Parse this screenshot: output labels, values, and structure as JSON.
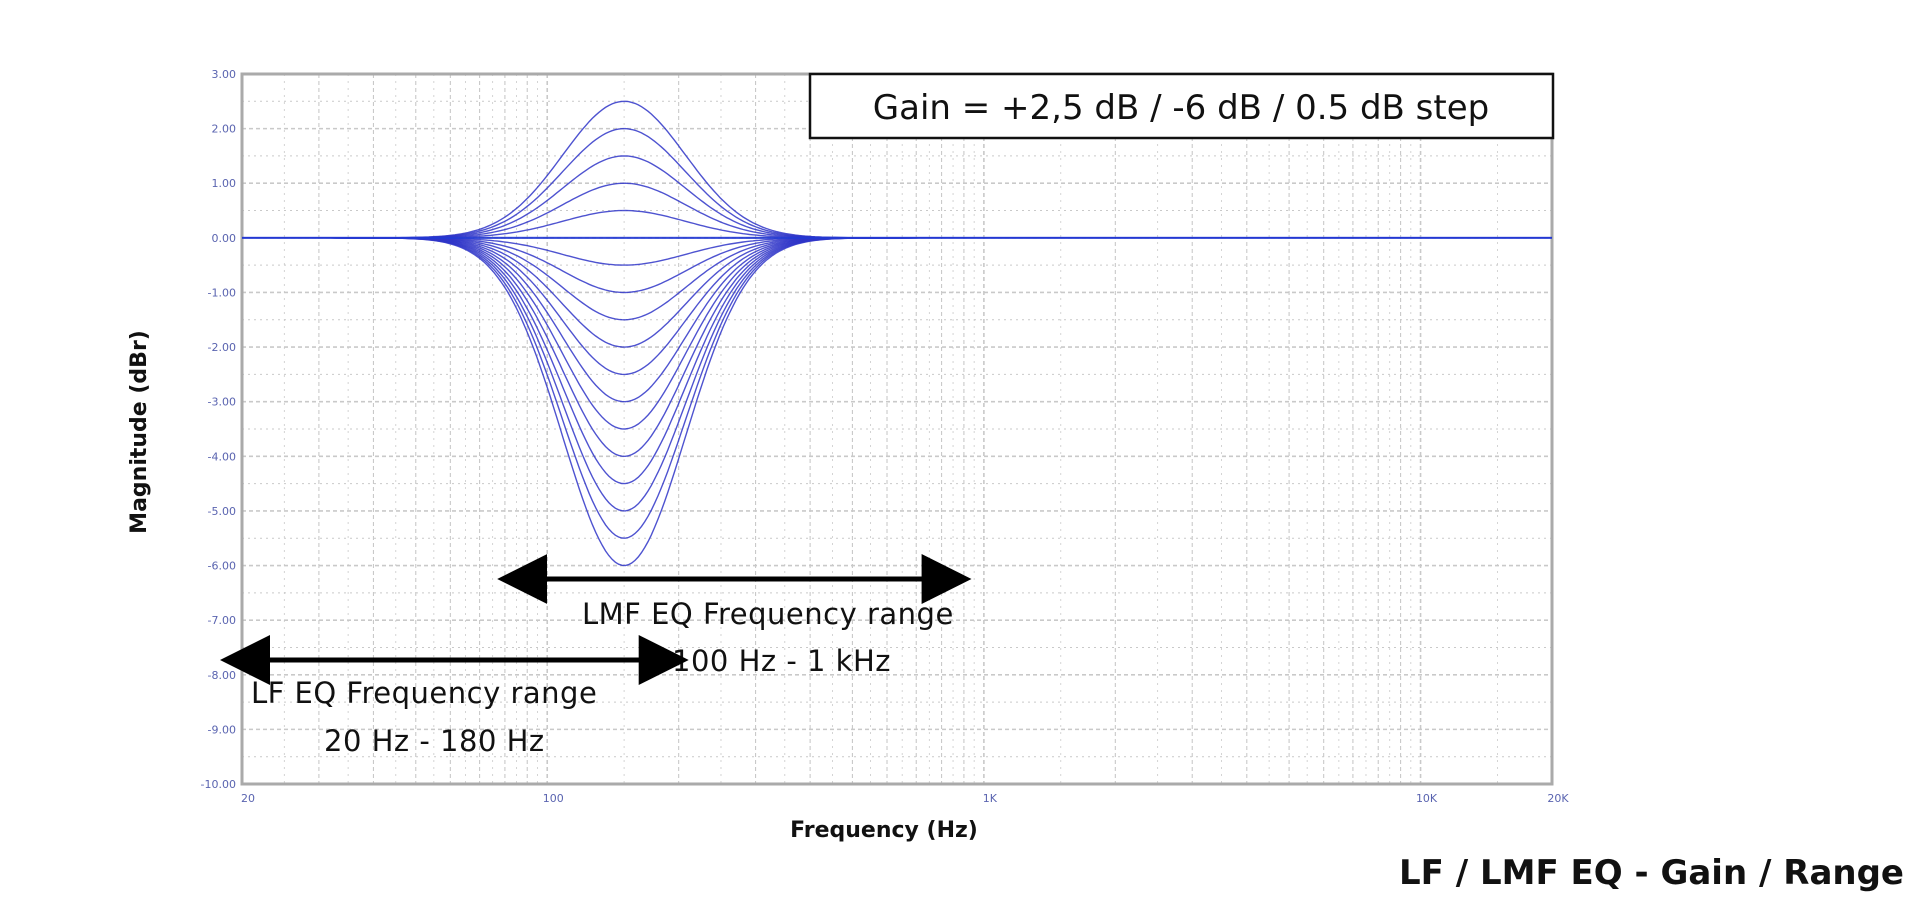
{
  "chart_data": {
    "type": "line",
    "title": "LF / LMF EQ - Gain / Range",
    "xlabel": "Frequency (Hz)",
    "ylabel": "Magnitude (dBr)",
    "x_scale": "log",
    "xlim": [
      20,
      20000
    ],
    "ylim": [
      -10,
      3
    ],
    "x_tick_labels": [
      {
        "value": 20,
        "label": "20"
      },
      {
        "value": 100,
        "label": "100"
      },
      {
        "value": 1000,
        "label": "1K"
      },
      {
        "value": 10000,
        "label": "10K"
      },
      {
        "value": 20000,
        "label": "20K"
      }
    ],
    "y_tick_labels": [
      {
        "value": 3,
        "label": "3.00"
      },
      {
        "value": 2,
        "label": "2.00"
      },
      {
        "value": 1,
        "label": "1.00"
      },
      {
        "value": 0,
        "label": "0.00"
      },
      {
        "value": -1,
        "label": "-1.00"
      },
      {
        "value": -2,
        "label": "-2.00"
      },
      {
        "value": -3,
        "label": "-3.00"
      },
      {
        "value": -4,
        "label": "-4.00"
      },
      {
        "value": -5,
        "label": "-5.00"
      },
      {
        "value": -6,
        "label": "-6.00"
      },
      {
        "value": -7,
        "label": "-7.00"
      },
      {
        "value": -8,
        "label": "-8.00"
      },
      {
        "value": -9,
        "label": "-9.00"
      },
      {
        "value": -10,
        "label": "-10.00"
      }
    ],
    "grid": true,
    "center_frequency_hz": 150,
    "bandwidth_octaves": 1.1,
    "series_gains_db": [
      2.5,
      2.0,
      1.5,
      1.0,
      0.5,
      0.0,
      -0.5,
      -1.0,
      -1.5,
      -2.0,
      -2.5,
      -3.0,
      -3.5,
      -4.0,
      -4.5,
      -5.0,
      -5.5,
      -6.0
    ],
    "annotations": {
      "gain_box": "Gain = +2,5 dB / -6 dB / 0.5 dB step",
      "lmf_range": {
        "line1": "LMF EQ Frequency range",
        "line2": "100 Hz - 1 kHz",
        "from_hz": 90,
        "to_hz": 800
      },
      "lf_range": {
        "line1": "LF EQ Frequency range",
        "line2": "20 Hz - 180 Hz",
        "from_hz": 20,
        "to_hz": 180
      }
    }
  },
  "colors": {
    "curve": "#2f35c8",
    "curve_dense": "#1f3bd6",
    "grid": "#c9c9c9",
    "tick_label": "#5a64b0",
    "text": "#111111",
    "arrow": "#000000",
    "plot_border": "#aaaaaa"
  }
}
